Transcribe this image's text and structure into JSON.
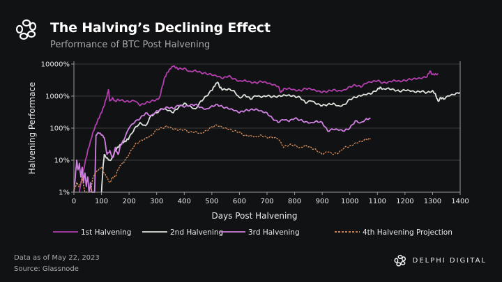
{
  "header": {
    "title": "The Halving’s Declining Effect",
    "subtitle": "Performance of BTC Post Halvening",
    "logo_icon": "delphi-knot-icon"
  },
  "footer": {
    "data_date": "Data as of May 22, 2023",
    "source": "Source: Glassnode",
    "brand": "DELPHI DIGITAL",
    "brand_icon": "delphi-knot-icon"
  },
  "chart_data": {
    "type": "line",
    "title": "The Halving’s Declining Effect",
    "subtitle": "Performance of BTC Post Halvening",
    "xlabel": "Days Post Halvening",
    "ylabel": "Halvening Performace",
    "xlim": [
      0,
      1400
    ],
    "ylim": [
      1,
      10000
    ],
    "yscale": "log",
    "x_ticks": [
      "0",
      "100",
      "200",
      "300",
      "400",
      "500",
      "600",
      "700",
      "800",
      "900",
      "1000",
      "1100",
      "1200",
      "1300",
      "1400"
    ],
    "y_ticks": [
      "1%",
      "10%",
      "100%",
      "1000%",
      "10000%"
    ],
    "grid": "horizontal",
    "legend_position": "bottom",
    "series": [
      {
        "name": "1st Halvening",
        "color": "#b43fae",
        "style": "solid",
        "x": [
          20,
          30,
          40,
          50,
          60,
          70,
          80,
          90,
          100,
          110,
          120,
          125,
          130,
          140,
          150,
          160,
          180,
          200,
          220,
          240,
          260,
          280,
          300,
          310,
          320,
          330,
          340,
          350,
          360,
          370,
          380,
          400,
          420,
          440,
          460,
          480,
          500,
          520,
          540,
          560,
          580,
          600,
          620,
          640,
          660,
          680,
          700,
          720,
          740,
          750,
          760,
          780,
          800,
          820,
          840,
          860,
          880,
          900,
          920,
          940,
          960,
          980,
          1000,
          1020,
          1040,
          1060,
          1080,
          1100,
          1120,
          1140,
          1160,
          1180,
          1200,
          1220,
          1240,
          1260,
          1280,
          1290,
          1300,
          1310,
          1320
        ],
        "y": [
          1,
          3,
          8,
          20,
          40,
          80,
          130,
          200,
          300,
          500,
          1000,
          1600,
          700,
          900,
          700,
          800,
          700,
          650,
          700,
          500,
          600,
          700,
          800,
          900,
          2000,
          4000,
          5500,
          7000,
          8500,
          7500,
          7000,
          7500,
          6000,
          6500,
          5500,
          5000,
          4500,
          4000,
          3500,
          4200,
          3500,
          3000,
          3200,
          2800,
          2600,
          2800,
          2500,
          2200,
          2000,
          1300,
          1700,
          1800,
          1600,
          1500,
          1700,
          1600,
          1400,
          1300,
          1400,
          1600,
          1500,
          1600,
          2000,
          2200,
          1900,
          2500,
          2700,
          3000,
          2600,
          2800,
          3200,
          3000,
          3100,
          3300,
          3400,
          3500,
          4000,
          6000,
          4800,
          5000,
          5000
        ]
      },
      {
        "name": "2nd Halvening",
        "color": "#dde5de",
        "style": "solid",
        "x": [
          100,
          105,
          110,
          120,
          130,
          140,
          150,
          160,
          170,
          180,
          190,
          200,
          220,
          240,
          260,
          280,
          300,
          320,
          340,
          360,
          380,
          400,
          420,
          440,
          460,
          480,
          500,
          510,
          520,
          530,
          540,
          560,
          580,
          600,
          620,
          640,
          660,
          680,
          700,
          720,
          740,
          760,
          780,
          800,
          820,
          840,
          860,
          880,
          900,
          920,
          940,
          960,
          980,
          1000,
          1020,
          1040,
          1060,
          1080,
          1100,
          1110,
          1120,
          1140,
          1160,
          1180,
          1200,
          1220,
          1240,
          1260,
          1280,
          1300,
          1310,
          1320,
          1330,
          1340,
          1360,
          1380,
          1400
        ],
        "y": [
          1,
          5,
          15,
          12,
          10,
          12,
          20,
          25,
          30,
          35,
          40,
          50,
          100,
          150,
          120,
          250,
          300,
          400,
          350,
          300,
          450,
          600,
          500,
          400,
          700,
          1000,
          1500,
          2000,
          2700,
          1800,
          1600,
          1700,
          1500,
          900,
          1100,
          800,
          1000,
          900,
          1000,
          950,
          1000,
          1100,
          1100,
          1000,
          900,
          600,
          700,
          550,
          500,
          550,
          600,
          500,
          550,
          800,
          900,
          1000,
          1100,
          1200,
          1600,
          1900,
          1700,
          1800,
          1600,
          1400,
          1500,
          1400,
          1300,
          1400,
          1300,
          1500,
          1200,
          700,
          900,
          800,
          1000,
          1100,
          1300
        ]
      },
      {
        "name": "3rd Halvening",
        "color": "#cf80e0",
        "style": "solid",
        "x": [
          0,
          5,
          10,
          15,
          20,
          25,
          30,
          35,
          40,
          45,
          50,
          55,
          60,
          65,
          70,
          75,
          80,
          90,
          100,
          110,
          120,
          130,
          140,
          150,
          160,
          170,
          180,
          200,
          220,
          240,
          260,
          280,
          300,
          320,
          340,
          360,
          380,
          400,
          420,
          440,
          460,
          480,
          500,
          520,
          540,
          560,
          580,
          600,
          620,
          640,
          660,
          680,
          700,
          720,
          740,
          760,
          780,
          800,
          820,
          840,
          860,
          880,
          900,
          920,
          940,
          960,
          980,
          1000,
          1020,
          1040,
          1060,
          1075
        ],
        "y": [
          1,
          3,
          10,
          5,
          8,
          3,
          6,
          2,
          4,
          1.5,
          3,
          1,
          2,
          1,
          1,
          1,
          60,
          70,
          60,
          50,
          15,
          20,
          12,
          25,
          15,
          30,
          40,
          100,
          150,
          200,
          300,
          250,
          350,
          400,
          450,
          400,
          500,
          450,
          500,
          550,
          450,
          400,
          500,
          550,
          450,
          400,
          350,
          300,
          350,
          380,
          400,
          350,
          300,
          200,
          150,
          180,
          160,
          200,
          180,
          160,
          150,
          170,
          150,
          80,
          90,
          85,
          80,
          100,
          170,
          150,
          200,
          200
        ]
      },
      {
        "name": "4th Halvening Projection",
        "color": "#e0915c",
        "style": "dashed",
        "x": [
          0,
          10,
          20,
          30,
          40,
          50,
          60,
          70,
          80,
          90,
          100,
          110,
          120,
          130,
          140,
          150,
          160,
          170,
          180,
          200,
          220,
          240,
          260,
          280,
          300,
          320,
          340,
          360,
          380,
          400,
          420,
          440,
          460,
          480,
          500,
          520,
          540,
          560,
          580,
          600,
          620,
          640,
          660,
          680,
          700,
          720,
          740,
          760,
          780,
          800,
          820,
          840,
          860,
          880,
          900,
          920,
          940,
          960,
          980,
          1000,
          1020,
          1040,
          1060,
          1075
        ],
        "y": [
          1,
          2,
          1.5,
          3,
          1,
          1,
          1,
          3,
          4,
          5,
          6,
          4,
          3,
          2,
          3,
          3,
          5,
          7,
          8,
          15,
          30,
          40,
          50,
          60,
          90,
          100,
          110,
          90,
          85,
          90,
          75,
          80,
          70,
          85,
          110,
          120,
          100,
          90,
          80,
          75,
          60,
          60,
          55,
          60,
          50,
          50,
          45,
          25,
          30,
          30,
          25,
          30,
          25,
          20,
          15,
          18,
          15,
          17,
          25,
          28,
          35,
          40,
          45,
          45
        ]
      }
    ]
  }
}
